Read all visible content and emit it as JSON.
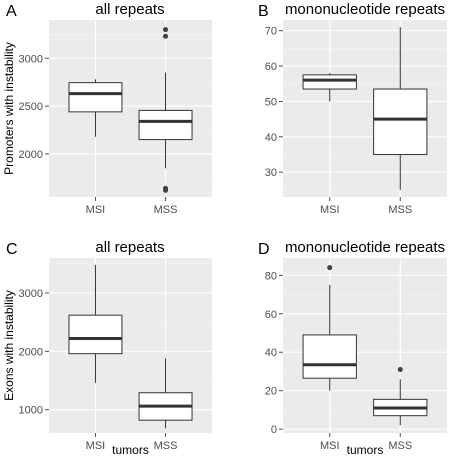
{
  "chart_data": [
    {
      "type": "box",
      "letter": "A",
      "title": "all repeats",
      "ylabel": "Promoters with instability",
      "xlabel": "",
      "categories": [
        "MSI",
        "MSS"
      ],
      "ylim": [
        1550,
        3400
      ],
      "yticks": [
        2000,
        2500,
        3000
      ],
      "boxes": [
        {
          "q1": 2440,
          "median": 2630,
          "q3": 2745,
          "lower": 2180,
          "upper": 2780,
          "outliers": []
        },
        {
          "q1": 2150,
          "median": 2340,
          "q3": 2455,
          "lower": 1850,
          "upper": 2850,
          "outliers": [
            3230,
            3300,
            1640,
            1620
          ]
        }
      ]
    },
    {
      "type": "box",
      "letter": "B",
      "title": "mononucleotide repeats",
      "ylabel": "",
      "xlabel": "",
      "categories": [
        "MSI",
        "MSS"
      ],
      "ylim": [
        23,
        73
      ],
      "yticks": [
        30,
        40,
        50,
        60,
        70
      ],
      "boxes": [
        {
          "q1": 53.5,
          "median": 56,
          "q3": 57.5,
          "lower": 50,
          "upper": 58,
          "outliers": []
        },
        {
          "q1": 35,
          "median": 45,
          "q3": 53.5,
          "lower": 25,
          "upper": 71,
          "outliers": []
        }
      ]
    },
    {
      "type": "box",
      "letter": "C",
      "title": "all repeats",
      "ylabel": "Exons with instability",
      "xlabel": "tumors",
      "categories": [
        "MSI",
        "MSS"
      ],
      "ylim": [
        600,
        3600
      ],
      "yticks": [
        1000,
        2000,
        3000
      ],
      "boxes": [
        {
          "q1": 1960,
          "median": 2220,
          "q3": 2620,
          "lower": 1460,
          "upper": 3480,
          "outliers": []
        },
        {
          "q1": 820,
          "median": 1060,
          "q3": 1290,
          "lower": 680,
          "upper": 1880,
          "outliers": []
        }
      ]
    },
    {
      "type": "box",
      "letter": "D",
      "title": "mononucleotide repeats",
      "ylabel": "",
      "xlabel": "tumors",
      "categories": [
        "MSI",
        "MSS"
      ],
      "ylim": [
        -2,
        89
      ],
      "yticks": [
        0,
        20,
        40,
        60,
        80
      ],
      "boxes": [
        {
          "q1": 26.5,
          "median": 33.5,
          "q3": 49,
          "lower": 20,
          "upper": 75,
          "outliers": [
            84
          ]
        },
        {
          "q1": 7,
          "median": 11,
          "q3": 15.5,
          "lower": 2,
          "upper": 26,
          "outliers": [
            31
          ]
        }
      ]
    }
  ]
}
